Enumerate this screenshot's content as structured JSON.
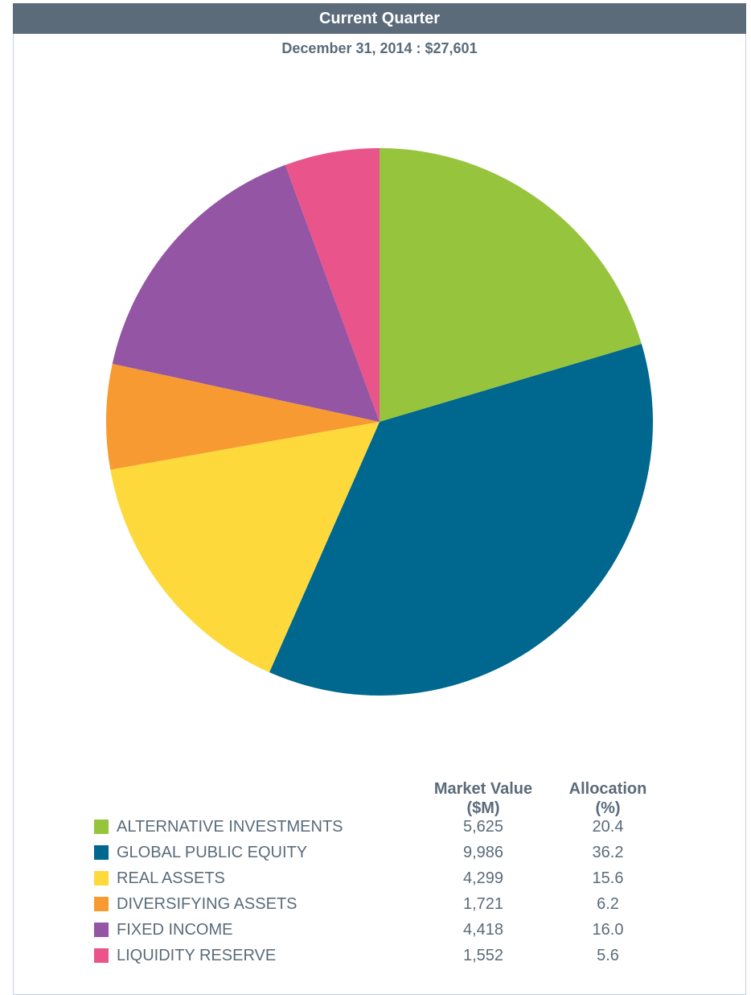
{
  "header": {
    "title": "Current Quarter",
    "subtitle": "December 31, 2014 : $27,601"
  },
  "table": {
    "market_value_header": "Market Value\n($M)",
    "allocation_header": "Allocation\n(%)"
  },
  "chart_data": {
    "type": "pie",
    "title": "Current Quarter",
    "subtitle": "December 31, 2014 : $27,601",
    "total": "$27,601",
    "categories": [
      "ALTERNATIVE INVESTMENTS",
      "GLOBAL PUBLIC EQUITY",
      "REAL ASSETS",
      "DIVERSIFYING ASSETS",
      "FIXED INCOME",
      "LIQUIDITY RESERVE"
    ],
    "market_values": [
      "5,625",
      "9,986",
      "4,299",
      "1,721",
      "4,418",
      "1,552"
    ],
    "allocations": [
      "20.4",
      "36.2",
      "15.6",
      "6.2",
      "16.0",
      "5.6"
    ],
    "values": [
      20.4,
      36.2,
      15.6,
      6.2,
      16.0,
      5.6
    ],
    "colors": [
      "#97c43d",
      "#00678f",
      "#fdd93b",
      "#f79a31",
      "#9355a4",
      "#e9548a"
    ],
    "legend_position": "bottom"
  }
}
